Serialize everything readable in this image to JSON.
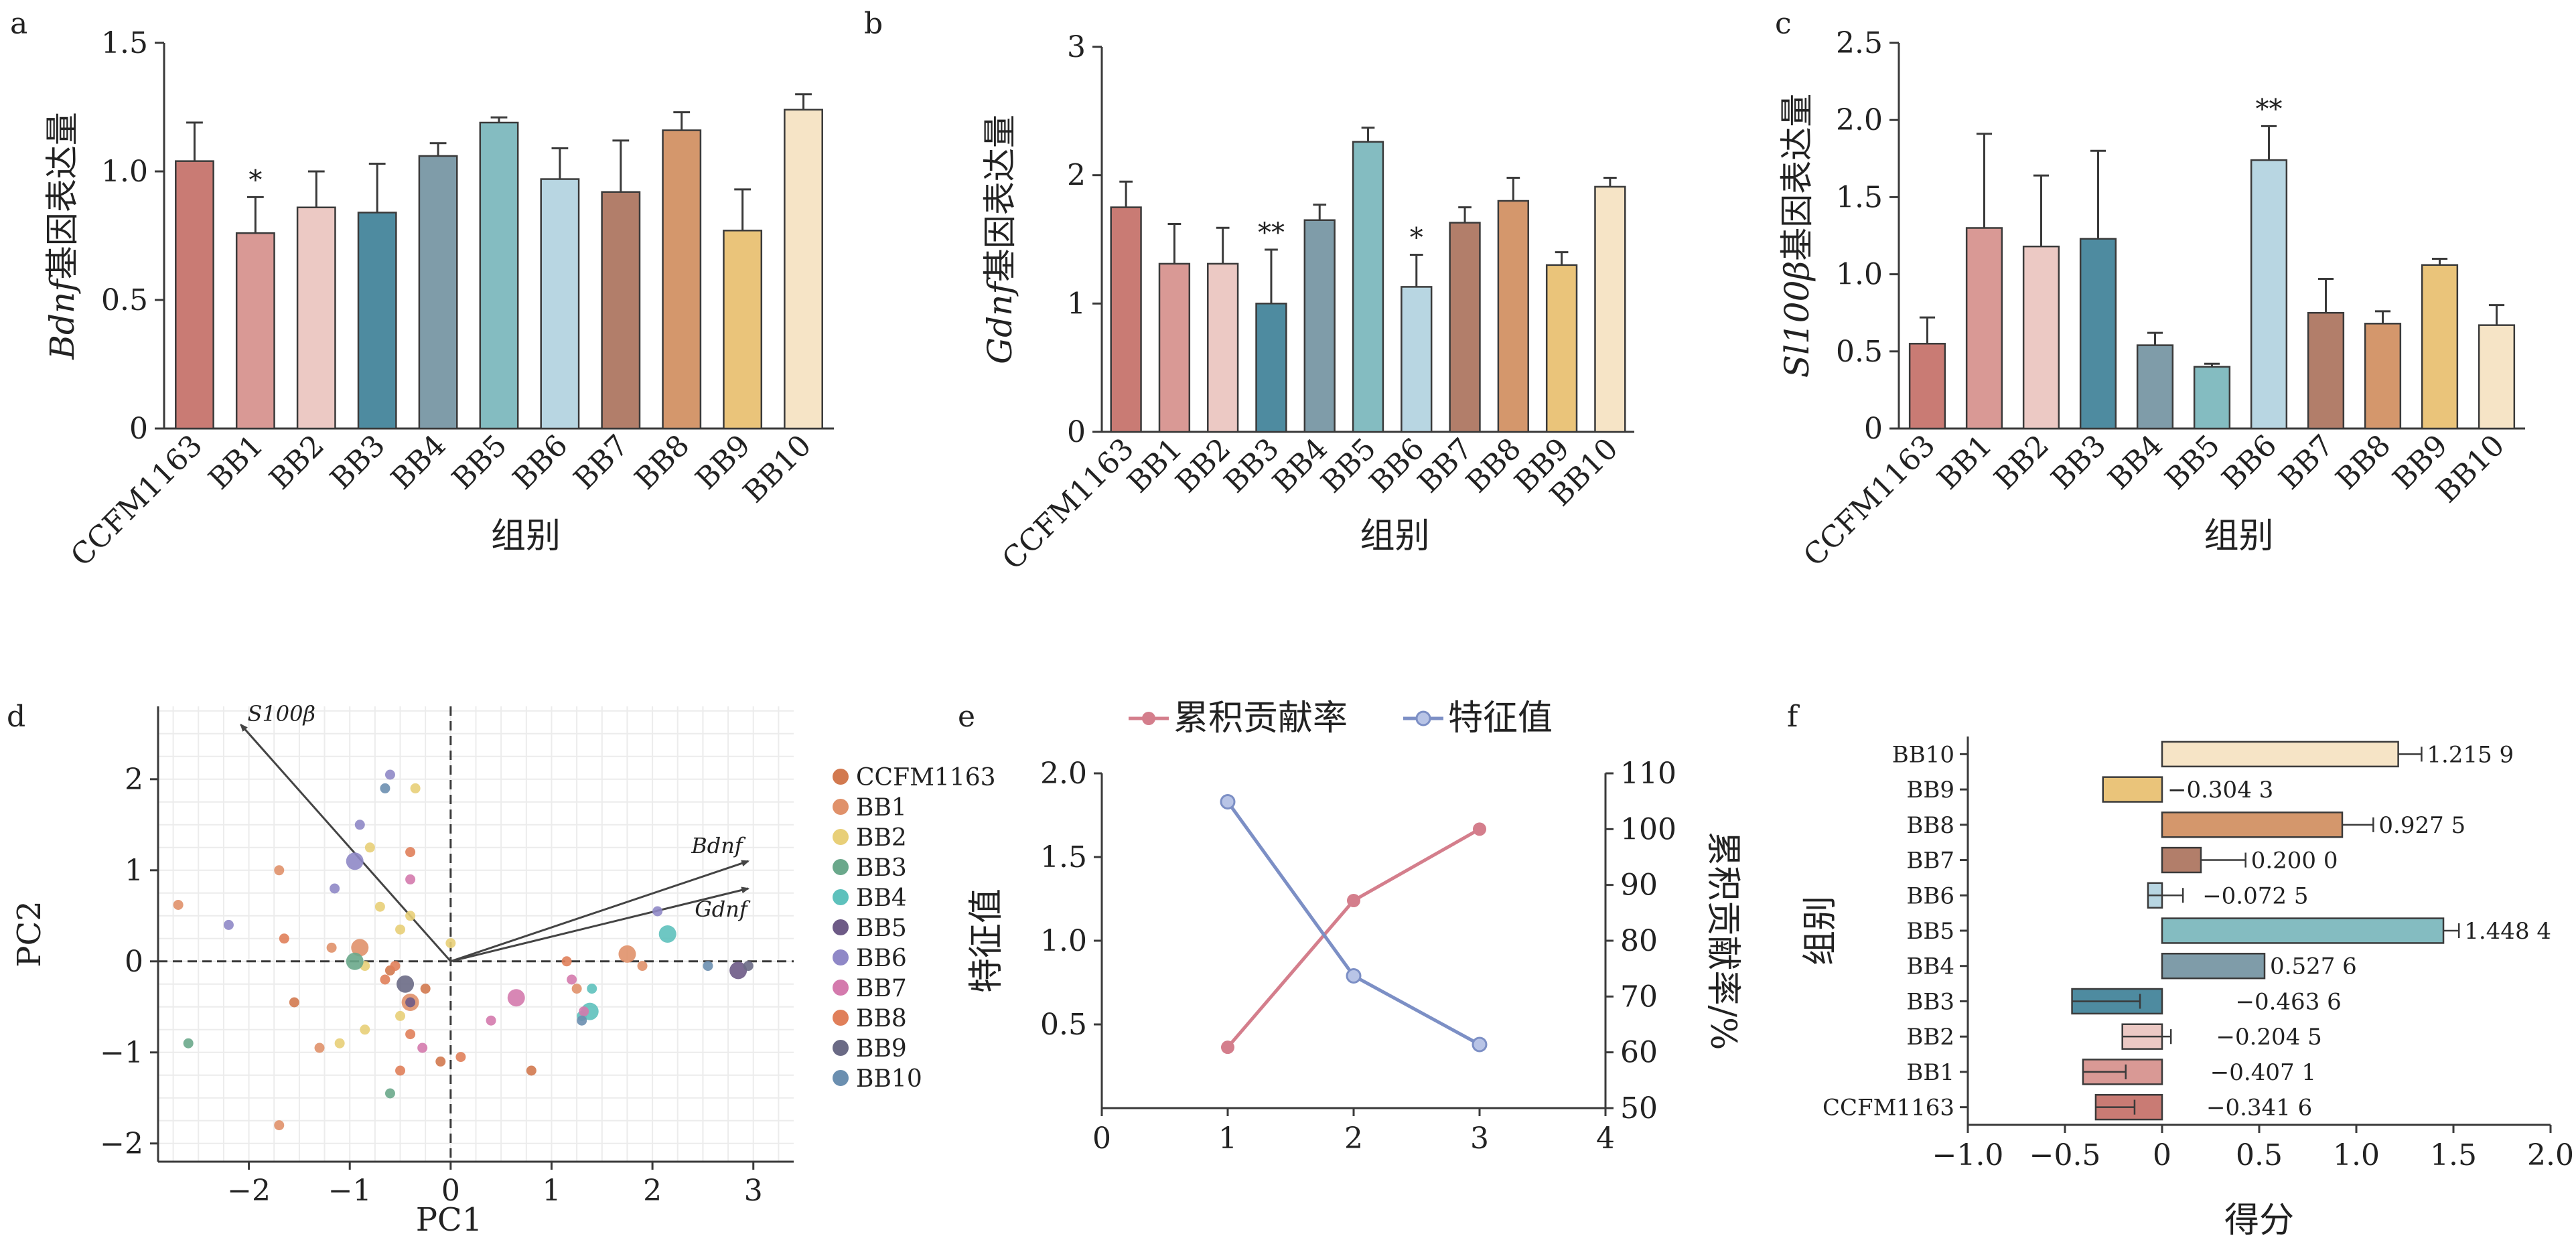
{
  "colors": {
    "CCFM1163": "#c97b74",
    "BB1": "#d99995",
    "BB2": "#ecc9c4",
    "BB3": "#4e8ba0",
    "BB4": "#7f9ca9",
    "BB5": "#84bcc1",
    "BB6": "#b8d6e2",
    "BB7": "#b27e6a",
    "BB8": "#d4976c",
    "BB9": "#eac47a",
    "BB10": "#f6e4c6",
    "line_cum": "#d47e8c",
    "line_eig": "#7c8fc5"
  },
  "chart_data": [
    {
      "panel": "a",
      "type": "bar",
      "categories": [
        "CCFM1163",
        "BB1",
        "BB2",
        "BB3",
        "BB4",
        "BB5",
        "BB6",
        "BB7",
        "BB8",
        "BB9",
        "BB10"
      ],
      "values": [
        1.04,
        0.76,
        0.86,
        0.84,
        1.06,
        1.19,
        0.97,
        0.92,
        1.16,
        0.77,
        1.24
      ],
      "errors": [
        0.15,
        0.14,
        0.14,
        0.19,
        0.05,
        0.02,
        0.12,
        0.2,
        0.07,
        0.16,
        0.06
      ],
      "annotations": [
        "",
        "*",
        "",
        "",
        "",
        "",
        "",
        "",
        "",
        "",
        ""
      ],
      "ylabel_italic": "Bdnf",
      "ylabel_text": "基因表达量",
      "xlabel": "组别",
      "ylim": [
        0,
        1.5
      ],
      "yticks": [
        0,
        0.5,
        1.0,
        1.5
      ],
      "ytick_labels": [
        "0",
        "0.5",
        "1.0",
        "1.5"
      ]
    },
    {
      "panel": "b",
      "type": "bar",
      "categories": [
        "CCFM1163",
        "BB1",
        "BB2",
        "BB3",
        "BB4",
        "BB5",
        "BB6",
        "BB7",
        "BB8",
        "BB9",
        "BB10"
      ],
      "values": [
        1.75,
        1.31,
        1.31,
        1.0,
        1.65,
        2.26,
        1.13,
        1.63,
        1.8,
        1.3,
        1.91
      ],
      "errors": [
        0.2,
        0.31,
        0.28,
        0.42,
        0.12,
        0.11,
        0.25,
        0.12,
        0.18,
        0.1,
        0.07
      ],
      "annotations": [
        "",
        "",
        "",
        "**",
        "",
        "",
        "*",
        "",
        "",
        "",
        ""
      ],
      "ylabel_italic": "Gdnf",
      "ylabel_text": "基因表达量",
      "xlabel": "组别",
      "ylim": [
        0,
        3
      ],
      "yticks": [
        0,
        1,
        2,
        3
      ],
      "ytick_labels": [
        "0",
        "1",
        "2",
        "3"
      ]
    },
    {
      "panel": "c",
      "type": "bar",
      "categories": [
        "CCFM1163",
        "BB1",
        "BB2",
        "BB3",
        "BB4",
        "BB5",
        "BB6",
        "BB7",
        "BB8",
        "BB9",
        "BB10"
      ],
      "values": [
        0.55,
        1.3,
        1.18,
        1.23,
        0.54,
        0.4,
        1.74,
        0.75,
        0.68,
        1.06,
        0.67
      ],
      "errors": [
        0.17,
        0.61,
        0.46,
        0.57,
        0.08,
        0.02,
        0.22,
        0.22,
        0.08,
        0.04,
        0.13
      ],
      "annotations": [
        "",
        "",
        "",
        "",
        "",
        "",
        "**",
        "",
        "",
        "",
        ""
      ],
      "ylabel_italic": "Sl100β",
      "ylabel_text": "基因表达量",
      "xlabel": "组别",
      "ylim": [
        0,
        2.5
      ],
      "yticks": [
        0,
        0.5,
        1.0,
        1.5,
        2.0,
        2.5
      ],
      "ytick_labels": [
        "0",
        "0.5",
        "1.0",
        "1.5",
        "2.0",
        "2.5"
      ]
    },
    {
      "panel": "d",
      "type": "scatter",
      "xlabel": "PC1",
      "ylabel": "PC2",
      "xlim": [
        -2.9,
        3.4
      ],
      "ylim": [
        -2.2,
        2.8
      ],
      "xticks": [
        -2,
        -1,
        0,
        1,
        2,
        3
      ],
      "xtick_labels": [
        "−2",
        "−1",
        "0",
        "1",
        "2",
        "3"
      ],
      "yticks": [
        -2,
        -1,
        0,
        1,
        2
      ],
      "ytick_labels": [
        "−2",
        "−1",
        "0",
        "1",
        "2"
      ],
      "grid": true,
      "legend_position": "right",
      "legend": [
        "CCFM1163",
        "BB1",
        "BB2",
        "BB3",
        "BB4",
        "BB5",
        "BB6",
        "BB7",
        "BB8",
        "BB9",
        "BB10"
      ],
      "loadings": [
        {
          "name": "S100β",
          "x": -2.08,
          "y": 2.6
        },
        {
          "name": "Bdnf",
          "x": 2.95,
          "y": 1.1
        },
        {
          "name": "Gdnf",
          "x": 2.95,
          "y": 0.8
        }
      ],
      "points": [
        {
          "g": "CCFM1163",
          "x": -1.55,
          "y": -0.45
        },
        {
          "g": "CCFM1163",
          "x": -0.1,
          "y": -1.1
        },
        {
          "g": "CCFM1163",
          "x": -0.25,
          "y": -0.3
        },
        {
          "g": "CCFM1163",
          "x": 0.8,
          "y": -1.2
        },
        {
          "g": "CCFM1163",
          "x": -0.6,
          "y": -0.1
        },
        {
          "g": "BB1",
          "x": -2.7,
          "y": 0.62
        },
        {
          "g": "BB1",
          "x": -1.3,
          "y": -0.95
        },
        {
          "g": "BB1",
          "x": -0.9,
          "y": 0.15,
          "big": 1
        },
        {
          "g": "BB1",
          "x": -1.7,
          "y": 1.0
        },
        {
          "g": "BB1",
          "x": -1.18,
          "y": 0.15
        },
        {
          "g": "BB1",
          "x": 1.75,
          "y": 0.08,
          "big": 1
        },
        {
          "g": "BB1",
          "x": -0.4,
          "y": -0.45,
          "big": 1
        },
        {
          "g": "BB1",
          "x": 1.25,
          "y": -0.3
        },
        {
          "g": "BB1",
          "x": 1.9,
          "y": -0.05
        },
        {
          "g": "BB1",
          "x": -1.7,
          "y": -1.8
        },
        {
          "g": "BB2",
          "x": -0.35,
          "y": 1.9
        },
        {
          "g": "BB2",
          "x": -0.8,
          "y": 1.25
        },
        {
          "g": "BB2",
          "x": -0.5,
          "y": 0.35
        },
        {
          "g": "BB2",
          "x": -0.85,
          "y": -0.05
        },
        {
          "g": "BB2",
          "x": -0.85,
          "y": -0.75
        },
        {
          "g": "BB2",
          "x": -0.5,
          "y": -0.6
        },
        {
          "g": "BB2",
          "x": 0.0,
          "y": 0.2
        },
        {
          "g": "BB2",
          "x": -0.7,
          "y": 0.6
        },
        {
          "g": "BB2",
          "x": -0.4,
          "y": 0.5
        },
        {
          "g": "BB2",
          "x": -1.1,
          "y": -0.9
        },
        {
          "g": "BB3",
          "x": -2.6,
          "y": -0.9
        },
        {
          "g": "BB3",
          "x": -0.6,
          "y": -1.45
        },
        {
          "g": "BB3",
          "x": -0.95,
          "y": 0.0,
          "big": 1
        },
        {
          "g": "BB4",
          "x": 1.38,
          "y": -0.55,
          "big": 1
        },
        {
          "g": "BB4",
          "x": 1.4,
          "y": -0.3
        },
        {
          "g": "BB4",
          "x": 1.3,
          "y": -0.6
        },
        {
          "g": "BB4",
          "x": 2.15,
          "y": 0.3,
          "big": 1
        },
        {
          "g": "BB5",
          "x": 2.85,
          "y": -0.1,
          "big": 1
        },
        {
          "g": "BB5",
          "x": -0.4,
          "y": -0.45
        },
        {
          "g": "BB6",
          "x": -0.9,
          "y": 1.5
        },
        {
          "g": "BB6",
          "x": -0.6,
          "y": 2.05
        },
        {
          "g": "BB6",
          "x": -1.15,
          "y": 0.8
        },
        {
          "g": "BB6",
          "x": -2.2,
          "y": 0.4
        },
        {
          "g": "BB6",
          "x": 2.05,
          "y": 0.55
        },
        {
          "g": "BB6",
          "x": -0.95,
          "y": 1.1,
          "big": 1
        },
        {
          "g": "BB7",
          "x": 0.65,
          "y": -0.4,
          "big": 1
        },
        {
          "g": "BB7",
          "x": 1.2,
          "y": -0.2
        },
        {
          "g": "BB7",
          "x": 1.32,
          "y": -0.55
        },
        {
          "g": "BB7",
          "x": -0.4,
          "y": 0.9
        },
        {
          "g": "BB7",
          "x": 0.4,
          "y": -0.65
        },
        {
          "g": "BB7",
          "x": -0.28,
          "y": -0.95
        },
        {
          "g": "BB8",
          "x": -1.65,
          "y": 0.25
        },
        {
          "g": "BB8",
          "x": -0.65,
          "y": -0.2
        },
        {
          "g": "BB8",
          "x": -0.55,
          "y": -0.05
        },
        {
          "g": "BB8",
          "x": -0.4,
          "y": -0.8
        },
        {
          "g": "BB8",
          "x": -0.5,
          "y": -1.2
        },
        {
          "g": "BB8",
          "x": 0.1,
          "y": -1.05
        },
        {
          "g": "BB8",
          "x": -0.4,
          "y": 1.2
        },
        {
          "g": "BB8",
          "x": 1.15,
          "y": 0.0
        },
        {
          "g": "BB9",
          "x": -0.45,
          "y": -0.25,
          "big": 1
        },
        {
          "g": "BB9",
          "x": 2.95,
          "y": -0.05
        },
        {
          "g": "BB10",
          "x": -0.65,
          "y": 1.9
        },
        {
          "g": "BB10",
          "x": 2.55,
          "y": -0.05
        },
        {
          "g": "BB10",
          "x": 1.3,
          "y": -0.65
        }
      ]
    },
    {
      "panel": "e",
      "type": "line",
      "x": [
        1,
        2,
        3
      ],
      "series": [
        {
          "name": "累积贡献率",
          "axis": "right",
          "values": [
            60.9,
            87.2,
            100.0
          ]
        },
        {
          "name": "特征值",
          "axis": "left",
          "values": [
            1.83,
            0.79,
            0.38
          ]
        }
      ],
      "xlim": [
        0,
        4
      ],
      "xticks": [
        0,
        1,
        2,
        3,
        4
      ],
      "ylim_left": [
        0,
        2.0
      ],
      "yticks_left": [
        0.5,
        1.0,
        1.5,
        2.0
      ],
      "ytick_labels_left": [
        "0.5",
        "1.0",
        "1.5",
        "2.0"
      ],
      "ylim_right": [
        50,
        110
      ],
      "yticks_right": [
        50,
        60,
        70,
        80,
        90,
        100,
        110
      ],
      "ylabel_left": "特征值",
      "ylabel_right": "累积贡献率/%",
      "legend_position": "top"
    },
    {
      "panel": "f",
      "type": "bar",
      "orientation": "horizontal",
      "categories": [
        "CCFM1163",
        "BB1",
        "BB2",
        "BB3",
        "BB4",
        "BB5",
        "BB6",
        "BB7",
        "BB8",
        "BB9",
        "BB10"
      ],
      "values": [
        -0.3416,
        -0.4071,
        -0.2045,
        -0.4636,
        0.5276,
        1.4484,
        -0.0725,
        0.2,
        0.9275,
        -0.3043,
        1.2159
      ],
      "value_labels": [
        "−0.341 6",
        "−0.407 1",
        "−0.204 5",
        "−0.463 6",
        "0.527 6",
        "1.448 4",
        "−0.072 5",
        "0.200 0",
        "0.927 5",
        "−0.304 3",
        "1.215 9"
      ],
      "errors": [
        0.2,
        0.22,
        0.25,
        0.35,
        0.0,
        0.08,
        0.18,
        0.23,
        0.16,
        0.0,
        0.12
      ],
      "xlabel": "得分",
      "ylabel": "组别",
      "xlim": [
        -1.0,
        2.0
      ],
      "xticks": [
        -1.0,
        -0.5,
        0,
        0.5,
        1.0,
        1.5,
        2.0
      ],
      "xtick_labels": [
        "−1.0",
        "−0.5",
        "0",
        "0.5",
        "1.0",
        "1.5",
        "2.0"
      ]
    }
  ]
}
